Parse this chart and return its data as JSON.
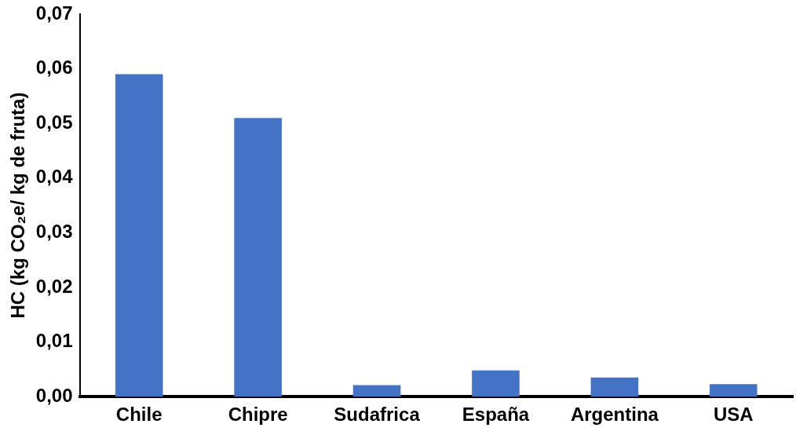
{
  "chart_data": {
    "type": "bar",
    "ylabel": "HC (kg CO₂e/ kg de fruta)",
    "categories": [
      "Chile",
      "Chipre",
      "Sudafrica",
      "España",
      "Argentina",
      "USA"
    ],
    "values": [
      0.059,
      0.051,
      0.0021,
      0.0048,
      0.0035,
      0.0023
    ],
    "color": "#4472c4",
    "ylim": [
      0,
      0.07
    ],
    "yticks": [
      {
        "value": 0,
        "label": "0,00"
      },
      {
        "value": 0.01,
        "label": "0,01"
      },
      {
        "value": 0.02,
        "label": "0,02"
      },
      {
        "value": 0.03,
        "label": "0,03"
      },
      {
        "value": 0.04,
        "label": "0,04"
      },
      {
        "value": 0.05,
        "label": "0,05"
      },
      {
        "value": 0.06,
        "label": "0,06"
      },
      {
        "value": 0.07,
        "label": "0,07"
      }
    ],
    "grid": false,
    "legend": false
  }
}
